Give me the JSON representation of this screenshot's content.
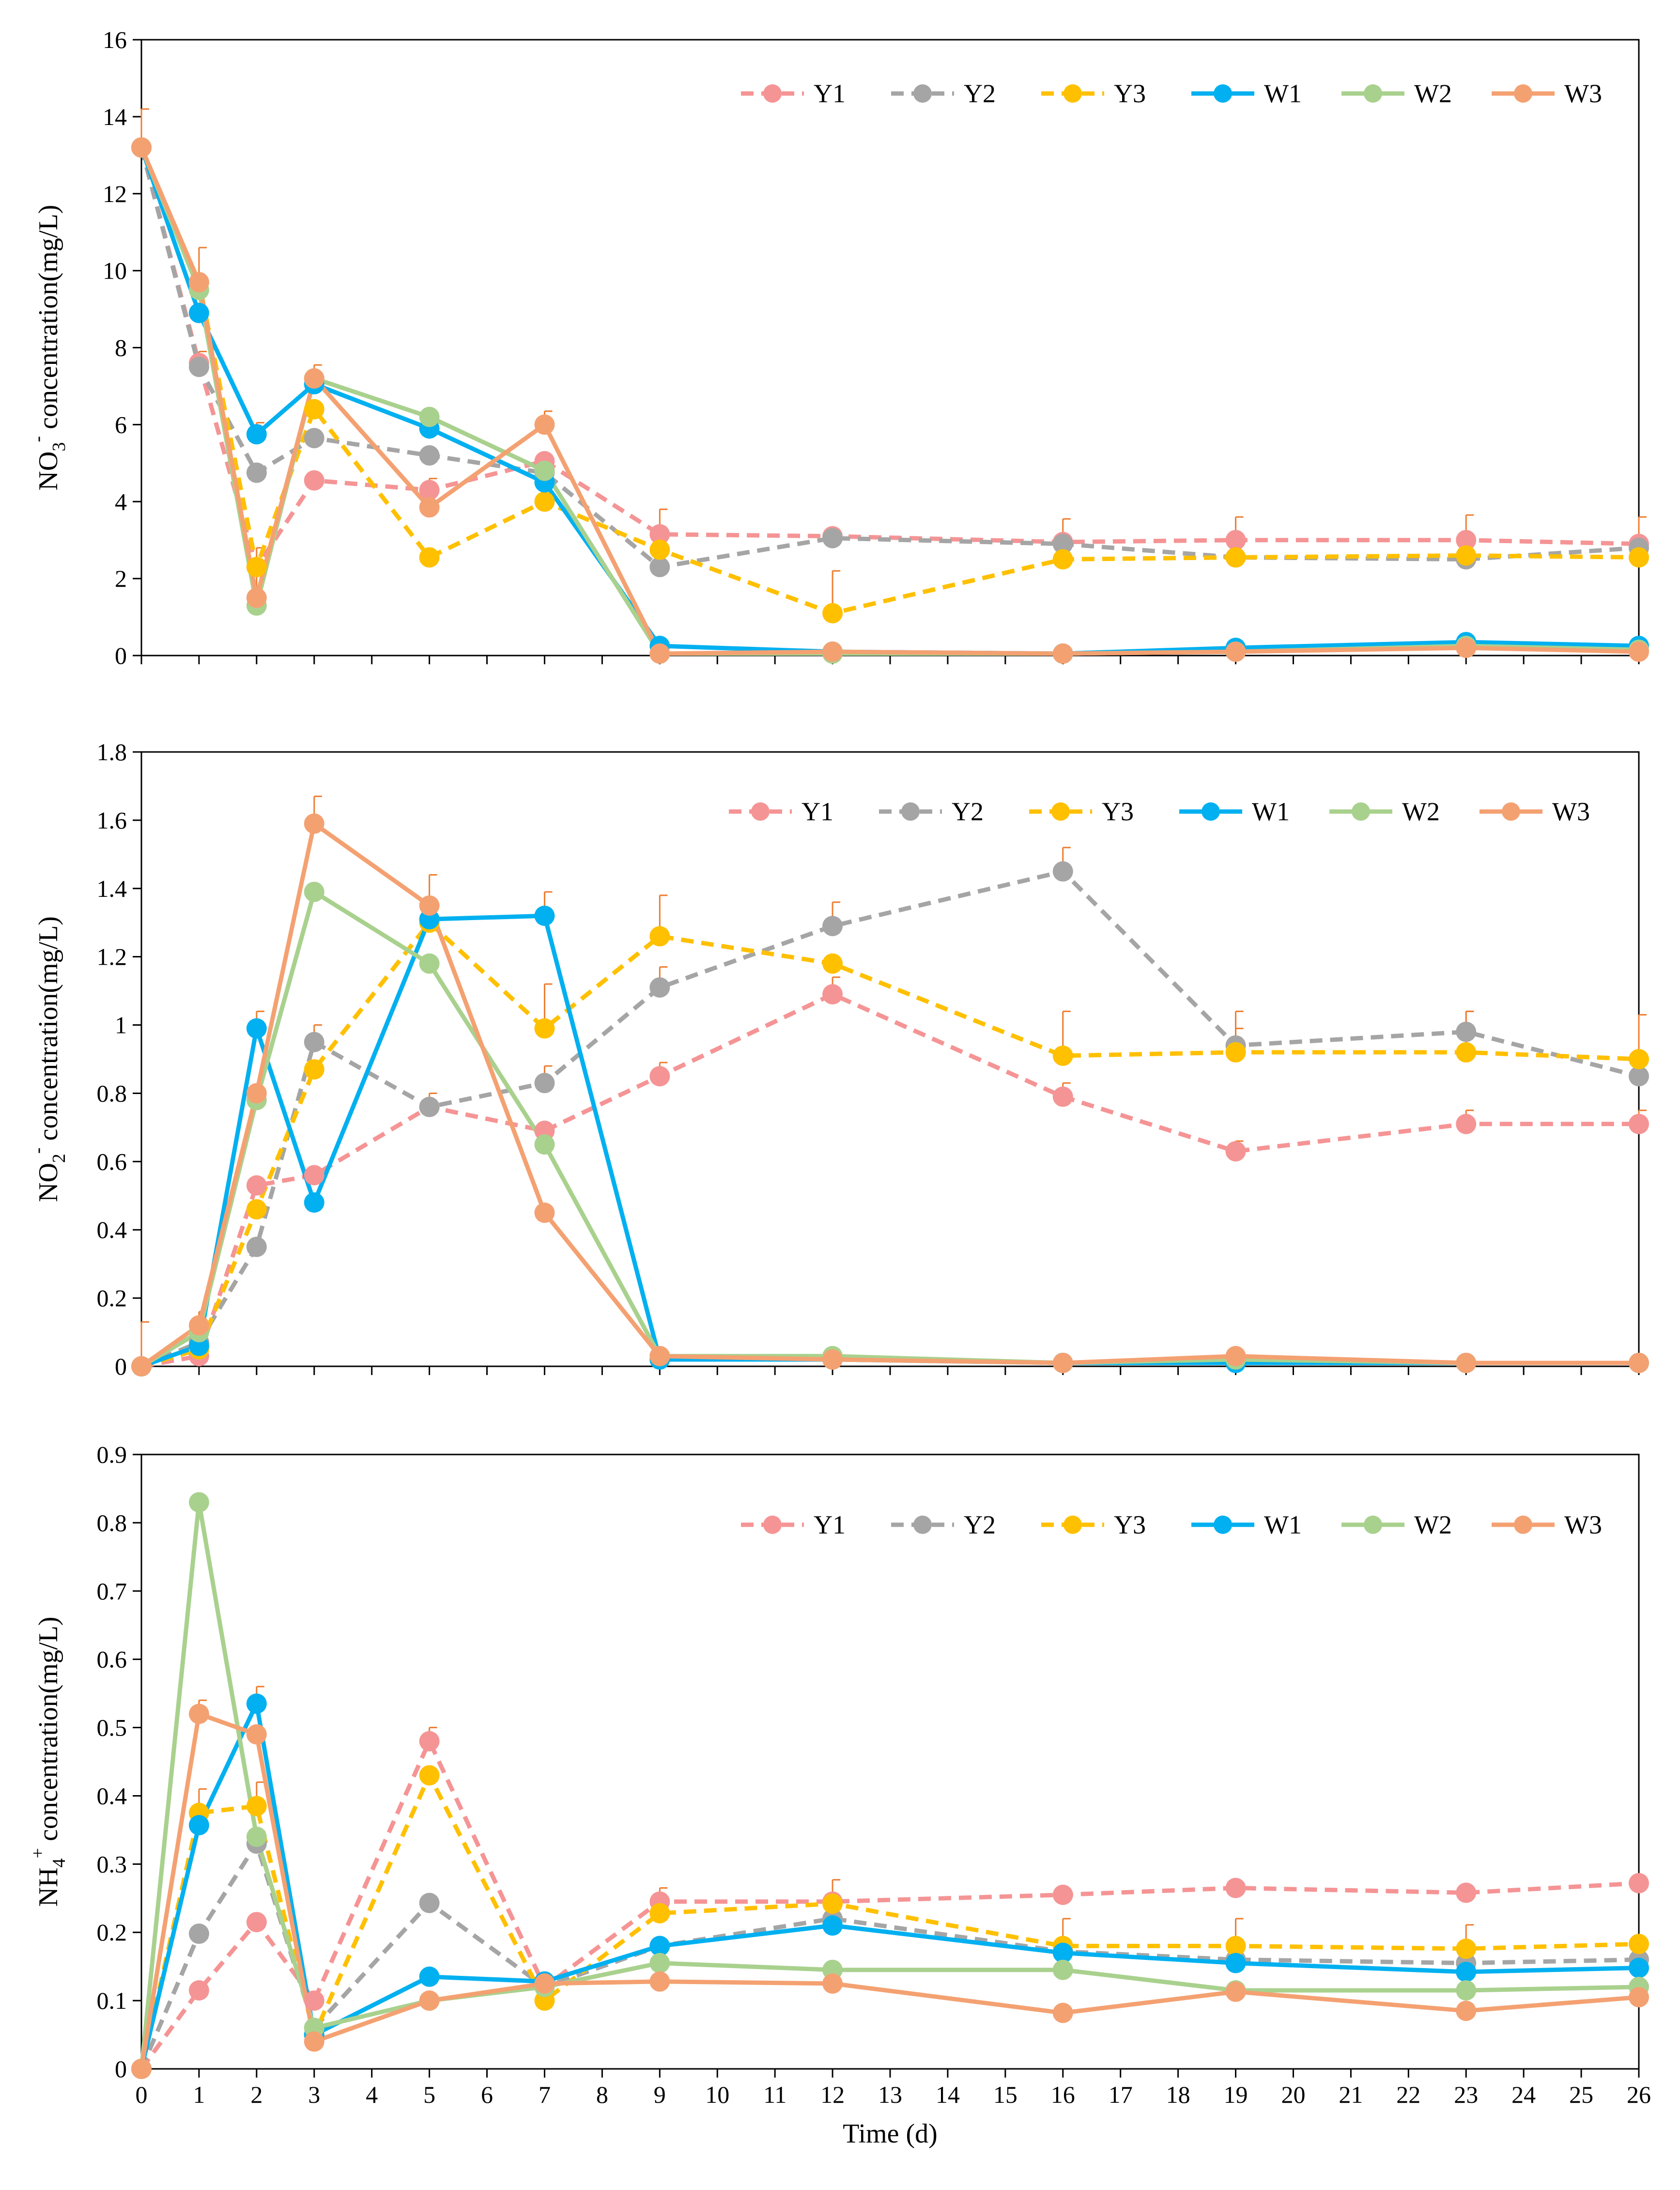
{
  "chart_data": [
    {
      "type": "line",
      "ylabel": "NO3- concentration(mg/L)",
      "ylabel_main": "NO",
      "ylabel_sub": "3",
      "ylabel_sup": "-",
      "ylabel_rest": "  concentration(mg/L)",
      "ylim": [
        0,
        16
      ],
      "yticks": [
        0,
        2,
        4,
        6,
        8,
        10,
        12,
        14,
        16
      ],
      "ytick_labels": [
        "0",
        "2",
        "4",
        "6",
        "8",
        "10",
        "12",
        "14",
        "16"
      ],
      "x": [
        0,
        1,
        2,
        3,
        5,
        7,
        9,
        12,
        16,
        19,
        23,
        26
      ],
      "series": [
        {
          "name": "Y1",
          "values": [
            13.2,
            7.6,
            2.3,
            4.55,
            4.3,
            5.05,
            3.15,
            3.1,
            2.95,
            3.0,
            3.0,
            2.9
          ],
          "errors": [
            0,
            0,
            0,
            0,
            0.3,
            0,
            0.65,
            0,
            0.6,
            0.6,
            0.65,
            0.7
          ]
        },
        {
          "name": "Y2",
          "values": [
            13.2,
            7.5,
            4.75,
            5.65,
            5.2,
            4.75,
            2.3,
            3.05,
            2.9,
            2.55,
            2.5,
            2.8
          ],
          "errors": [
            0,
            0.4,
            0,
            0,
            0,
            0,
            0,
            0,
            0,
            0,
            0,
            0
          ]
        },
        {
          "name": "Y3",
          "values": [
            13.2,
            9.7,
            2.3,
            6.4,
            2.55,
            4.0,
            2.75,
            1.1,
            2.5,
            2.55,
            2.6,
            2.55
          ],
          "errors": [
            0,
            0,
            0,
            0,
            0,
            0,
            0,
            1.1,
            0,
            0,
            0,
            0
          ]
        },
        {
          "name": "W1",
          "values": [
            13.2,
            8.9,
            5.75,
            7.05,
            5.9,
            4.5,
            0.25,
            0.1,
            0.05,
            0.2,
            0.35,
            0.25
          ],
          "errors": [
            0,
            0,
            0.3,
            0,
            0,
            0,
            0,
            0,
            0,
            0,
            0,
            0
          ]
        },
        {
          "name": "W2",
          "values": [
            13.2,
            9.5,
            1.3,
            7.2,
            6.2,
            4.8,
            0.05,
            0.05,
            0.05,
            0.1,
            0.25,
            0.15
          ],
          "errors": [
            0,
            0,
            0,
            0,
            0,
            0,
            0,
            0,
            0,
            0,
            0,
            0
          ]
        },
        {
          "name": "W3",
          "values": [
            13.2,
            9.7,
            1.5,
            7.2,
            3.85,
            6.0,
            0.05,
            0.1,
            0.05,
            0.1,
            0.2,
            0.1
          ],
          "errors": [
            1.0,
            0.9,
            1.3,
            0.35,
            0.35,
            0.35,
            0,
            0,
            0,
            0,
            0,
            0
          ]
        }
      ]
    },
    {
      "type": "line",
      "ylabel": "NO2- concentration(mg/L)",
      "ylabel_main": "NO",
      "ylabel_sub": "2",
      "ylabel_sup": "-",
      "ylabel_rest": "  concentration(mg/L)",
      "ylim": [
        0,
        1.8
      ],
      "yticks": [
        0,
        0.2,
        0.4,
        0.6,
        0.8,
        1.0,
        1.2,
        1.4,
        1.6,
        1.8
      ],
      "ytick_labels": [
        "0",
        "0.2",
        "0.4",
        "0.6",
        "0.8",
        "1",
        "1.2",
        "1.4",
        "1.6",
        "1.8"
      ],
      "x": [
        0,
        1,
        2,
        3,
        5,
        7,
        9,
        12,
        16,
        19,
        23,
        26
      ],
      "series": [
        {
          "name": "Y1",
          "values": [
            0.0,
            0.03,
            0.53,
            0.56,
            0.76,
            0.69,
            0.85,
            1.09,
            0.79,
            0.63,
            0.71,
            0.71
          ],
          "errors": [
            0,
            0,
            0,
            0,
            0,
            0,
            0.04,
            0.05,
            0.04,
            0.03,
            0.04,
            0.04
          ]
        },
        {
          "name": "Y2",
          "values": [
            0.0,
            0.07,
            0.35,
            0.95,
            0.76,
            0.83,
            1.11,
            1.29,
            1.45,
            0.94,
            0.98,
            0.85
          ],
          "errors": [
            0,
            0,
            0,
            0.05,
            0.04,
            0.05,
            0.06,
            0.07,
            0.07,
            0.05,
            0.06,
            0
          ]
        },
        {
          "name": "Y3",
          "values": [
            0.0,
            0.05,
            0.46,
            0.87,
            1.3,
            0.99,
            1.26,
            1.18,
            0.91,
            0.92,
            0.92,
            0.9
          ],
          "errors": [
            0,
            0,
            0,
            0,
            0,
            0.13,
            0.12,
            0,
            0.13,
            0.12,
            0.12,
            0.13
          ]
        },
        {
          "name": "W1",
          "values": [
            0.0,
            0.06,
            0.99,
            0.48,
            1.31,
            1.32,
            0.02,
            0.02,
            0.01,
            0.01,
            0.01,
            0.01
          ],
          "errors": [
            0,
            0,
            0.05,
            0,
            0,
            0.07,
            0,
            0,
            0,
            0,
            0,
            0
          ]
        },
        {
          "name": "W2",
          "values": [
            0.0,
            0.1,
            0.78,
            1.39,
            1.18,
            0.65,
            0.03,
            0.03,
            0.01,
            0.02,
            0.01,
            0.01
          ],
          "errors": [
            0,
            0,
            0,
            0,
            0,
            0,
            0,
            0,
            0,
            0,
            0,
            0
          ]
        },
        {
          "name": "W3",
          "values": [
            0.0,
            0.12,
            0.8,
            1.59,
            1.35,
            0.45,
            0.03,
            0.02,
            0.01,
            0.03,
            0.01,
            0.01
          ],
          "errors": [
            0.13,
            0.04,
            0,
            0.08,
            0.09,
            0,
            0,
            0,
            0,
            0,
            0,
            0
          ]
        }
      ]
    },
    {
      "type": "line",
      "ylabel": "NH4+ concentration(mg/L)",
      "ylabel_main": "NH",
      "ylabel_sub": "4",
      "ylabel_sup": "+",
      "ylabel_rest": " concentration(mg/L)",
      "ylim": [
        0,
        0.9
      ],
      "yticks": [
        0,
        0.1,
        0.2,
        0.3,
        0.4,
        0.5,
        0.6,
        0.7,
        0.8,
        0.9
      ],
      "ytick_labels": [
        "0",
        "0.1",
        "0.2",
        "0.3",
        "0.4",
        "0.5",
        "0.6",
        "0.7",
        "0.8",
        "0.9"
      ],
      "x": [
        0,
        1,
        2,
        3,
        5,
        7,
        9,
        12,
        16,
        19,
        23,
        26
      ],
      "xlabel": "Time (d)",
      "xtick_values": [
        0,
        1,
        2,
        3,
        4,
        5,
        6,
        7,
        8,
        9,
        10,
        11,
        12,
        13,
        14,
        15,
        16,
        17,
        18,
        19,
        20,
        21,
        22,
        23,
        24,
        25,
        26
      ],
      "xtick_labels": [
        "0",
        "1",
        "2",
        "3",
        "4",
        "5",
        "6",
        "7",
        "8",
        "9",
        "10",
        "11",
        "12",
        "13",
        "14",
        "15",
        "16",
        "17",
        "18",
        "19",
        "20",
        "21",
        "22",
        "23",
        "24",
        "25",
        "26"
      ],
      "series": [
        {
          "name": "Y1",
          "values": [
            0.0,
            0.115,
            0.215,
            0.1,
            0.48,
            0.12,
            0.245,
            0.245,
            0.255,
            0.265,
            0.258,
            0.272
          ],
          "errors": [
            0,
            0,
            0,
            0,
            0.02,
            0,
            0.02,
            0,
            0,
            0,
            0,
            0
          ]
        },
        {
          "name": "Y2",
          "values": [
            0.0,
            0.198,
            0.33,
            0.06,
            0.243,
            0.12,
            0.18,
            0.22,
            0.172,
            0.16,
            0.155,
            0.16
          ],
          "errors": [
            0,
            0,
            0,
            0,
            0,
            0,
            0,
            0,
            0,
            0,
            0,
            0
          ]
        },
        {
          "name": "Y3",
          "values": [
            0.0,
            0.375,
            0.385,
            0.05,
            0.43,
            0.1,
            0.228,
            0.242,
            0.18,
            0.18,
            0.176,
            0.183
          ],
          "errors": [
            0,
            0.035,
            0.035,
            0,
            0,
            0,
            0,
            0.035,
            0.04,
            0.04,
            0.035,
            0
          ]
        },
        {
          "name": "W1",
          "values": [
            0.0,
            0.357,
            0.535,
            0.05,
            0.135,
            0.128,
            0.18,
            0.21,
            0.17,
            0.155,
            0.142,
            0.148
          ],
          "errors": [
            0,
            0,
            0.025,
            0,
            0,
            0,
            0,
            0,
            0,
            0,
            0,
            0
          ]
        },
        {
          "name": "W2",
          "values": [
            0.0,
            0.83,
            0.34,
            0.06,
            0.1,
            0.12,
            0.155,
            0.145,
            0.145,
            0.115,
            0.115,
            0.12
          ],
          "errors": [
            0,
            0,
            0,
            0,
            0,
            0,
            0,
            0,
            0,
            0,
            0,
            0
          ]
        },
        {
          "name": "W3",
          "values": [
            0.0,
            0.52,
            0.49,
            0.04,
            0.1,
            0.125,
            0.128,
            0.125,
            0.082,
            0.113,
            0.085,
            0.105
          ],
          "errors": [
            0,
            0.02,
            0,
            0,
            0,
            0,
            0,
            0,
            0,
            0,
            0,
            0
          ]
        }
      ]
    }
  ],
  "series_colors": {
    "Y1": "#F59495",
    "Y2": "#A5A5A5",
    "Y3": "#FFC000",
    "W1": "#00B0F0",
    "W2": "#A9D18E",
    "W3": "#F4A172"
  },
  "series_styles": {
    "Y1": "dashed",
    "Y2": "dashed",
    "Y3": "dashed",
    "W1": "solid",
    "W2": "solid",
    "W3": "solid"
  },
  "error_bar_color": "#ED7D31",
  "legend": [
    "Y1",
    "Y2",
    "Y3",
    "W1",
    "W2",
    "W3"
  ],
  "x_range": [
    0,
    26
  ]
}
